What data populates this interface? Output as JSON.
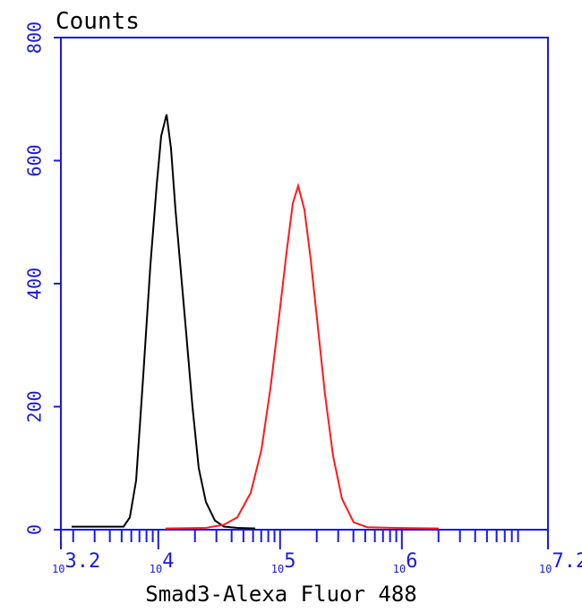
{
  "chart_data": {
    "type": "line",
    "title": "Counts",
    "x_label": "Smad3-Alexa Fluor 488",
    "x_log": true,
    "xlim": [
      1584.89,
      15848931.9
    ],
    "xticks": [
      {
        "value": 1584.89,
        "label": "10",
        "exponent": "3.2"
      },
      {
        "value": 10000,
        "label": "10",
        "exponent": "4"
      },
      {
        "value": 100000,
        "label": "10",
        "exponent": "5"
      },
      {
        "value": 1000000,
        "label": "10",
        "exponent": "6"
      },
      {
        "value": 15848931.9,
        "label": "10",
        "exponent": "7.2"
      }
    ],
    "ylim": [
      0,
      800
    ],
    "yticks": [
      0,
      200,
      400,
      600,
      800
    ],
    "axis_color": "#1a1adc",
    "series": [
      {
        "color": "#000000",
        "x": [
          1941,
          3228,
          5188,
          5837,
          6573,
          7520,
          8610,
          9700,
          10560,
          11690,
          12710,
          13840,
          15310,
          16940,
          19080,
          21480,
          24600,
          29160,
          34520,
          44530,
          62490
        ],
        "values": [
          5,
          5,
          5,
          20,
          80,
          250,
          430,
          560,
          640,
          675,
          620,
          520,
          420,
          320,
          200,
          100,
          45,
          15,
          5,
          3,
          2
        ]
      },
      {
        "color": "#ff1a1a",
        "x": [
          11480,
          24600,
          34520,
          44530,
          57410,
          70310,
          83330,
          98620,
          112900,
          127100,
          140800,
          158500,
          178300,
          204200,
          233800,
          272400,
          322700,
          401800,
          518800,
          861000,
          2009000
        ],
        "values": [
          2,
          3,
          8,
          20,
          60,
          130,
          230,
          350,
          450,
          530,
          559,
          520,
          440,
          330,
          220,
          120,
          50,
          12,
          4,
          3,
          2
        ]
      }
    ]
  }
}
